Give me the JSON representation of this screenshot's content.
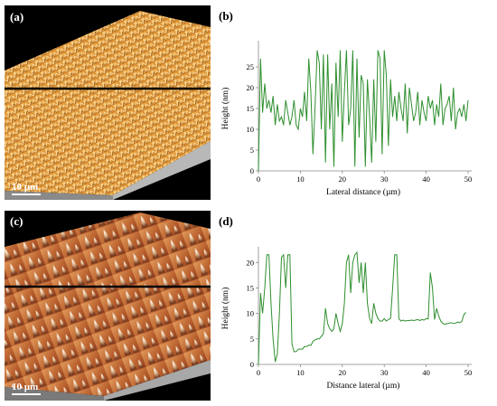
{
  "panels": {
    "a": {
      "label": "(a)",
      "scale_bar": "10 µm"
    },
    "b": {
      "label": "(b)"
    },
    "c": {
      "label": "(c)",
      "scale_bar": "10 µm"
    },
    "d": {
      "label": "(d)"
    }
  },
  "colors": {
    "line": "#2f8f2f",
    "surface_a": "#e8a445",
    "surface_c": "#c7703e"
  },
  "chart_data": [
    {
      "type": "line",
      "panel": "b",
      "xlabel": "Lateral distance (µm)",
      "ylabel": "Height (nm)",
      "xlim": [
        0,
        50
      ],
      "ylim": [
        0,
        30
      ],
      "xticks": [
        0,
        10,
        20,
        30,
        40,
        50
      ],
      "yticks": [
        0,
        5,
        10,
        15,
        20,
        25
      ],
      "x": [
        0,
        0.5,
        1,
        1.5,
        2,
        2.5,
        3,
        3.5,
        4,
        4.5,
        5,
        5.5,
        6,
        6.5,
        7,
        7.5,
        8,
        8.5,
        9,
        9.5,
        10,
        10.5,
        11,
        11.5,
        12,
        12.5,
        13,
        13.5,
        14,
        14.5,
        15,
        15.5,
        16,
        16.5,
        17,
        17.5,
        18,
        18.5,
        19,
        19.5,
        20,
        20.5,
        21,
        21.5,
        22,
        22.5,
        23,
        23.5,
        24,
        24.5,
        25,
        25.5,
        26,
        26.5,
        27,
        27.5,
        28,
        28.5,
        29,
        29.5,
        30,
        30.5,
        31,
        31.5,
        32,
        32.5,
        33,
        33.5,
        34,
        34.5,
        35,
        35.5,
        36,
        36.5,
        37,
        37.5,
        38,
        38.5,
        39,
        39.5,
        40,
        40.5,
        41,
        41.5,
        42,
        42.5,
        43,
        43.5,
        44,
        44.5,
        45,
        45.5,
        46,
        46.5,
        47,
        47.5,
        48,
        48.5,
        49,
        49.5,
        50
      ],
      "y": [
        0,
        27,
        14,
        21,
        15,
        17,
        14,
        18,
        11,
        16,
        12,
        13,
        11,
        17,
        14,
        11,
        13,
        17,
        11,
        10,
        15,
        13,
        19,
        12,
        27,
        19,
        4,
        15,
        29,
        26,
        10,
        28,
        2,
        28,
        10,
        21,
        1,
        26,
        13,
        29,
        7,
        19,
        29,
        11,
        15,
        29,
        1,
        27,
        8,
        23,
        21,
        1,
        22,
        13,
        2,
        22,
        7,
        29,
        27,
        4,
        29,
        23,
        6,
        22,
        13,
        18,
        12,
        19,
        15,
        12,
        21,
        9,
        20,
        16,
        12,
        14,
        19,
        11,
        17,
        14,
        12,
        18,
        15,
        17,
        11,
        16,
        13,
        21,
        11,
        15,
        16,
        18,
        12,
        20,
        10,
        14,
        15,
        13,
        16,
        12,
        17
      ]
    },
    {
      "type": "line",
      "panel": "d",
      "xlabel": "Distance lateral (µm)",
      "ylabel": "Height (nm)",
      "xlim": [
        0,
        50
      ],
      "ylim": [
        0,
        22
      ],
      "xticks": [
        0,
        10,
        20,
        30,
        40,
        50
      ],
      "yticks": [
        0,
        5,
        10,
        15,
        20
      ],
      "x": [
        0,
        0.5,
        1,
        1.5,
        2,
        2.5,
        3,
        3.5,
        4,
        4.5,
        5,
        5.5,
        6,
        6.5,
        7,
        7.5,
        8,
        8.5,
        9,
        9.5,
        10,
        10.5,
        11,
        11.5,
        12,
        12.5,
        13,
        13.5,
        14,
        14.5,
        15,
        15.5,
        16,
        16.5,
        17,
        17.5,
        18,
        18.5,
        19,
        19.5,
        20,
        20.5,
        21,
        21.5,
        22,
        22.5,
        23,
        23.5,
        24,
        24.5,
        25,
        25.5,
        26,
        26.5,
        27,
        27.5,
        28,
        28.5,
        29,
        29.5,
        30,
        30.5,
        31,
        31.5,
        32,
        32.5,
        33,
        33.5,
        34,
        34.5,
        35,
        35.5,
        36,
        36.5,
        37,
        37.5,
        38,
        38.5,
        39,
        39.5,
        40,
        40.5,
        41,
        41.5,
        42,
        42.5,
        43,
        43.5,
        44,
        44.5,
        45,
        45.5,
        46,
        46.5,
        47,
        47.5,
        48,
        48.5,
        49,
        49.5
      ],
      "y": [
        0,
        14,
        10,
        15,
        21.5,
        21.5,
        12,
        5,
        0.5,
        2,
        10,
        21,
        21.5,
        15,
        21.5,
        21.5,
        4,
        2.5,
        2.5,
        3,
        3,
        3,
        3.5,
        3.5,
        3.8,
        3.7,
        4.5,
        4.8,
        5,
        5,
        5.5,
        6,
        11,
        8,
        7,
        6.5,
        7,
        10,
        8,
        6.5,
        8,
        12,
        20,
        21.5,
        14,
        20,
        21.5,
        22,
        16,
        20,
        14,
        20,
        12,
        9,
        8,
        12,
        10,
        9,
        8.5,
        8.5,
        9,
        8.5,
        8.8,
        9,
        15,
        21.5,
        21.5,
        9,
        8.5,
        8.7,
        8.5,
        8.6,
        8.6,
        8.7,
        8.6,
        8.7,
        8.8,
        8.6,
        8.8,
        8.7,
        9,
        8.9,
        18,
        15,
        8.8,
        11,
        9.5,
        8.5,
        8,
        7.9,
        8,
        8.1,
        8.2,
        8,
        8.1,
        8.3,
        8.2,
        8.4,
        9.8,
        10.2
      ]
    }
  ]
}
